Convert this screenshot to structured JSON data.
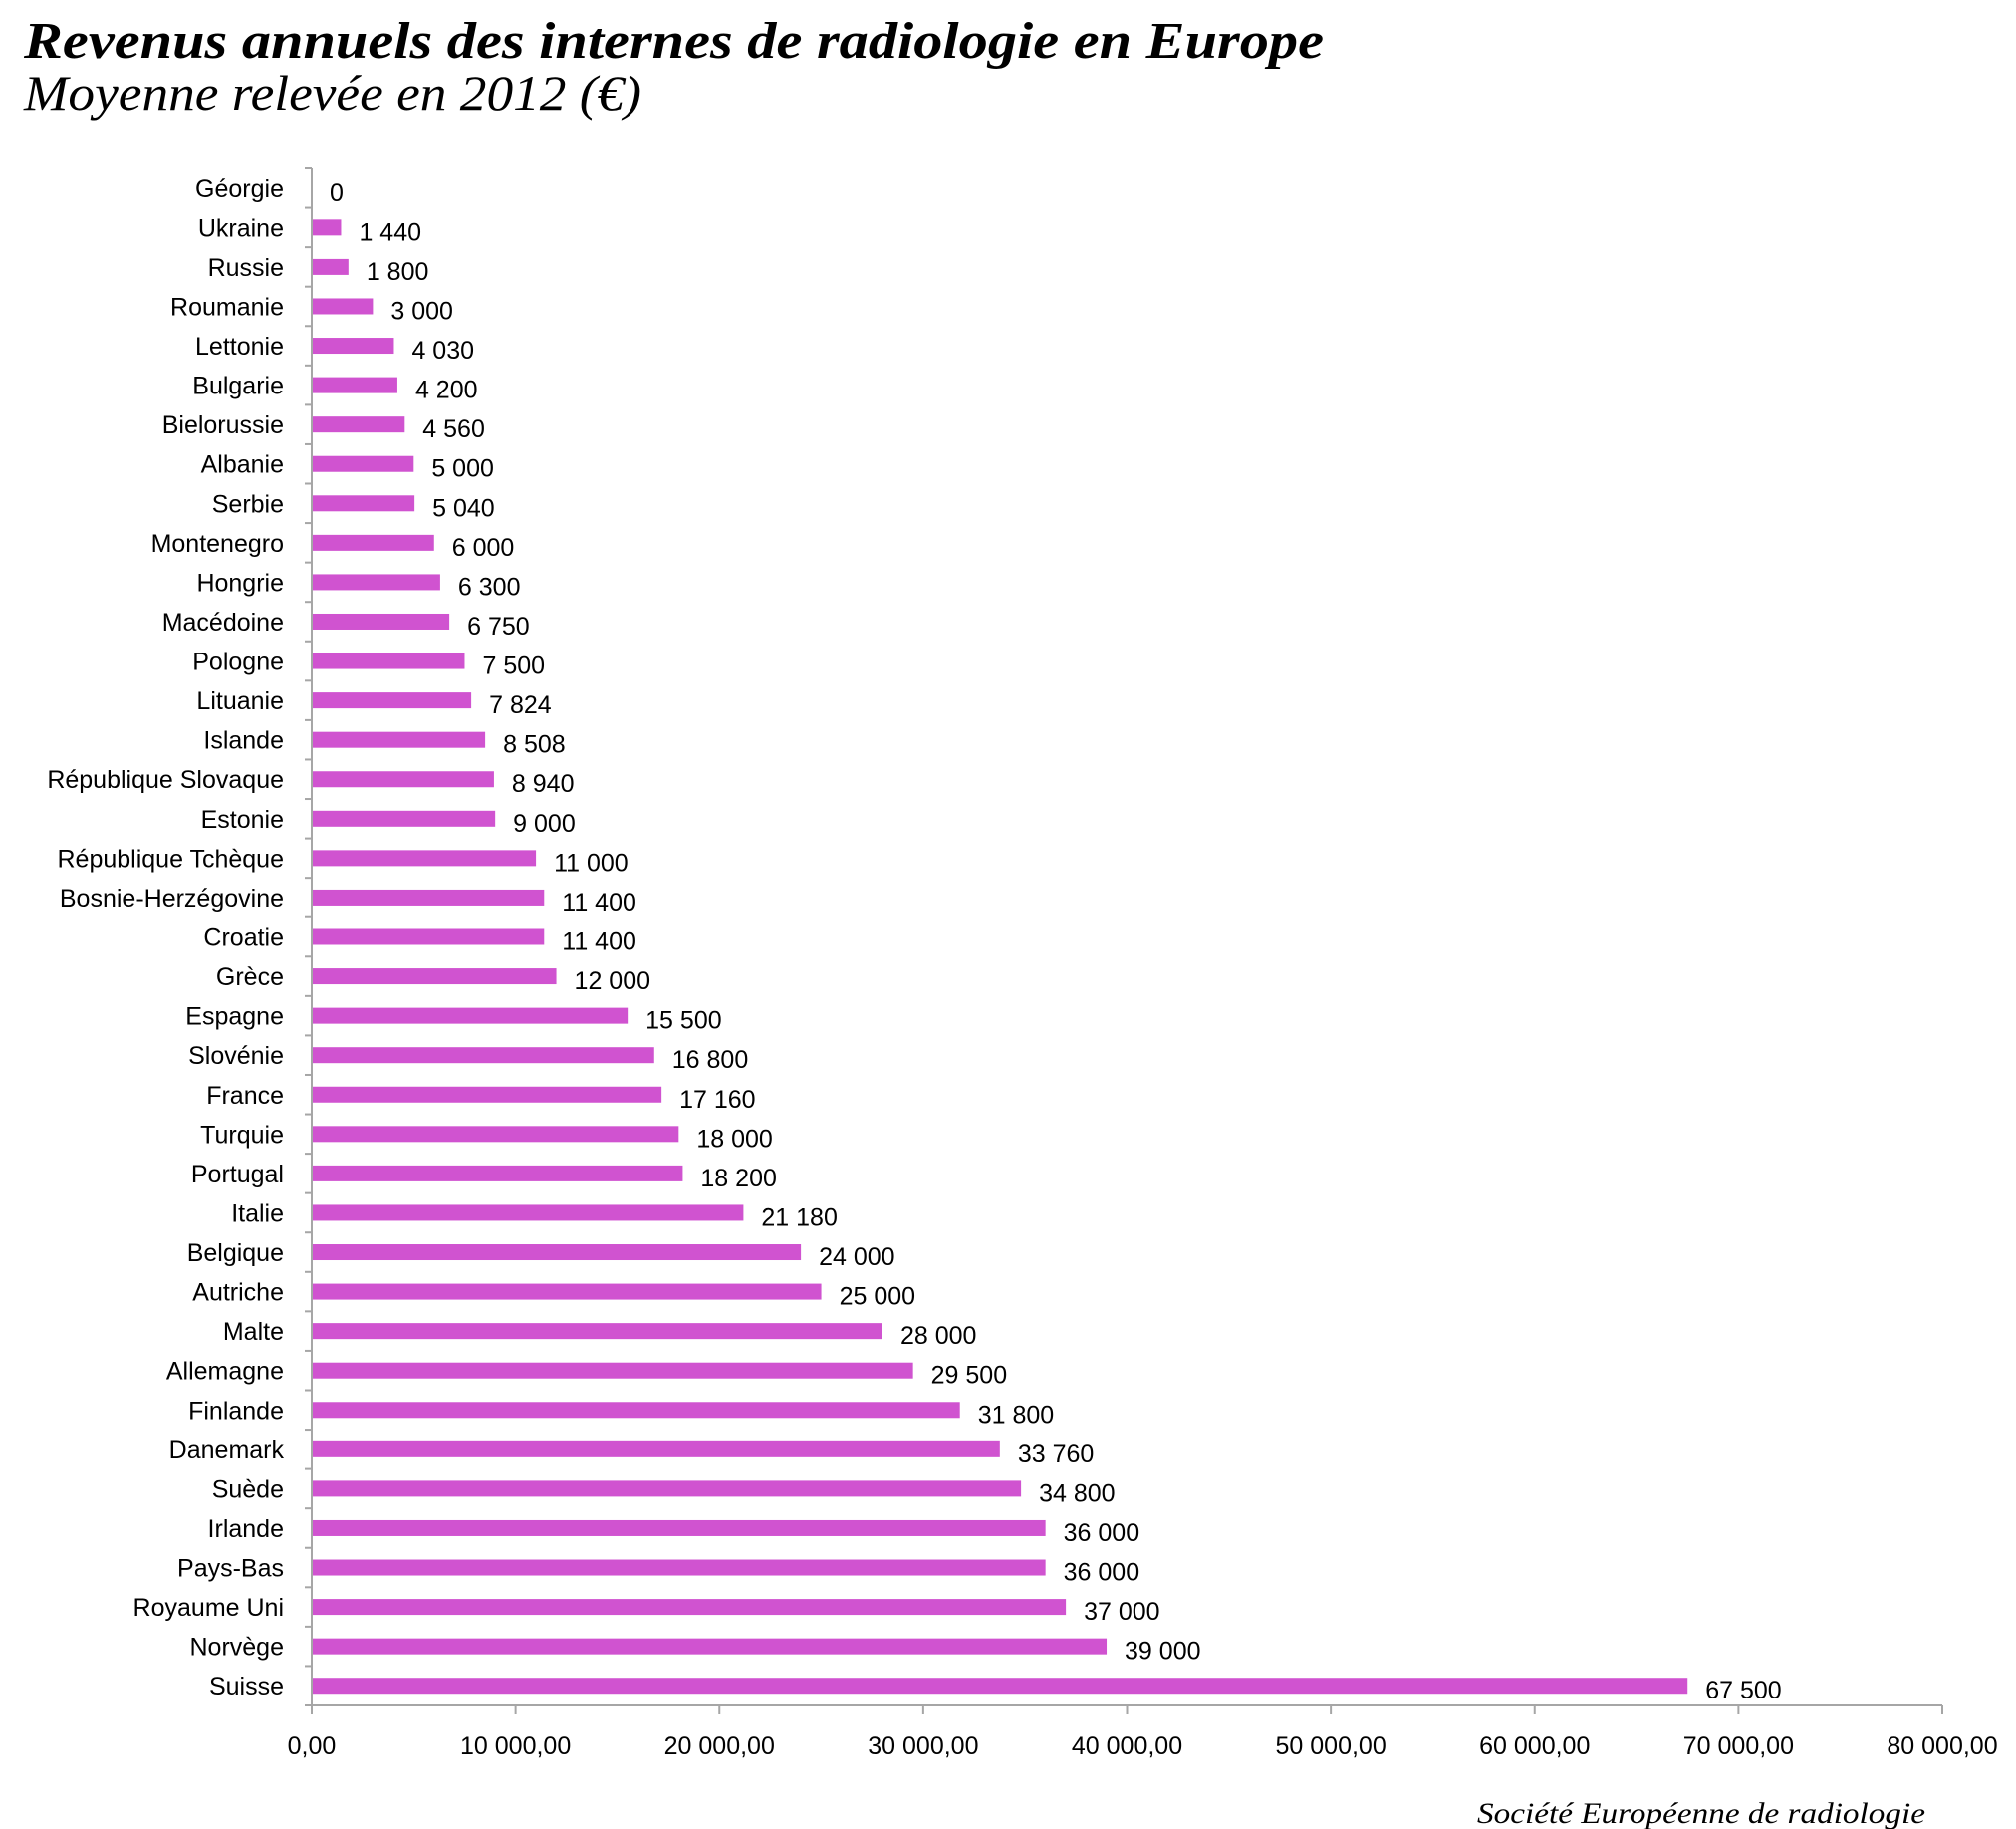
{
  "chart_data": {
    "type": "bar",
    "orientation": "horizontal",
    "title": "Revenus annuels des internes de radiologie en Europe",
    "subtitle": "Moyenne relevée en 2012 (€)",
    "source": "Société Européenne de radiologie",
    "categories": [
      "Géorgie",
      "Ukraine",
      "Russie",
      "Roumanie",
      "Lettonie",
      "Bulgarie",
      "Bielorussie",
      "Albanie",
      "Serbie",
      "Montenegro",
      "Hongrie",
      "Macédoine",
      "Pologne",
      "Lituanie",
      "Islande",
      "République Slovaque",
      "Estonie",
      "République Tchèque",
      "Bosnie-Herzégovine",
      "Croatie",
      "Grèce",
      "Espagne",
      "Slovénie",
      "France",
      "Turquie",
      "Portugal",
      "Italie",
      "Belgique",
      "Autriche",
      "Malte",
      "Allemagne",
      "Finlande",
      "Danemark",
      "Suède",
      "Irlande",
      "Pays-Bas",
      "Royaume Uni",
      "Norvège",
      "Suisse"
    ],
    "values": [
      0,
      1440,
      1800,
      3000,
      4030,
      4200,
      4560,
      5000,
      5040,
      6000,
      6300,
      6750,
      7500,
      7824,
      8508,
      8940,
      9000,
      11000,
      11400,
      11400,
      12000,
      15500,
      16800,
      17160,
      18000,
      18200,
      21180,
      24000,
      25000,
      28000,
      29500,
      31800,
      33760,
      34800,
      36000,
      36000,
      37000,
      39000,
      67500
    ],
    "value_labels": [
      "0",
      "1 440",
      "1 800",
      "3 000",
      "4 030",
      "4 200",
      "4 560",
      "5 000",
      "5 040",
      "6 000",
      "6 300",
      "6 750",
      "7 500",
      "7 824",
      "8 508",
      "8 940",
      "9 000",
      "11 000",
      "11 400",
      "11 400",
      "12 000",
      "15 500",
      "16 800",
      "17 160",
      "18 000",
      "18 200",
      "21 180",
      "24 000",
      "25 000",
      "28 000",
      "29 500",
      "31 800",
      "33 760",
      "34 800",
      "36 000",
      "36 000",
      "37 000",
      "39 000",
      "67 500"
    ],
    "xlim": [
      0,
      80000
    ],
    "xticks": [
      0,
      10000,
      20000,
      30000,
      40000,
      50000,
      60000,
      70000,
      80000
    ],
    "xtick_labels": [
      "0,00",
      "10 000,00",
      "20 000,00",
      "30 000,00",
      "40 000,00",
      "50 000,00",
      "60 000,00",
      "70 000,00",
      "80 000,00"
    ],
    "grid": false,
    "legend": "none",
    "bar_color": "#d053d0",
    "axis_color": "#a6a6a6"
  }
}
